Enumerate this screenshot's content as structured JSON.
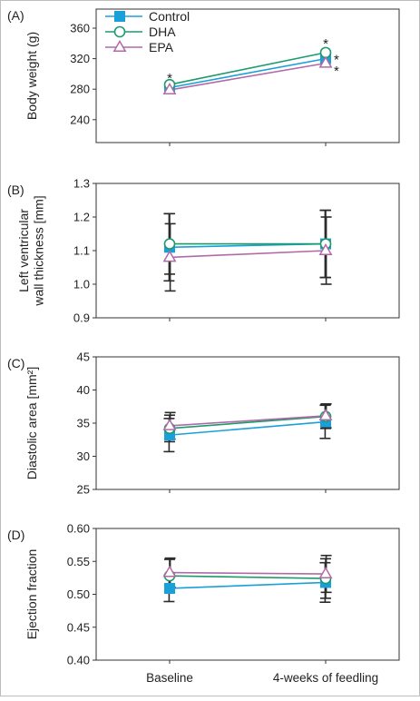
{
  "colors": {
    "Control": "#1aa0d8",
    "DHA": "#1d9a6c",
    "EPA": "#b06aa8",
    "axis": "#333333",
    "errorbar": "#2a2a2a"
  },
  "legend": {
    "placement": "top-left",
    "entries": [
      "Control",
      "DHA",
      "EPA"
    ]
  },
  "x_categories": [
    "Baseline",
    "4-weeks of feedling"
  ],
  "chart_data": [
    {
      "type": "line",
      "panel_label": "(A)",
      "ylabel": "Body weight (g)",
      "ylim": [
        210,
        385
      ],
      "yticks": [
        240,
        280,
        320,
        360
      ],
      "ytick_labels": [
        "240",
        "280",
        "320",
        "360"
      ],
      "categories": [
        "Baseline",
        "4-weeks of feedling"
      ],
      "series": [
        {
          "name": "Control",
          "values": [
            282,
            320
          ],
          "err": [
            0,
            0
          ],
          "marker": "square"
        },
        {
          "name": "DHA",
          "values": [
            286,
            328
          ],
          "err": [
            0,
            0
          ],
          "marker": "circle"
        },
        {
          "name": "EPA",
          "values": [
            279,
            314
          ],
          "err": [
            0,
            0
          ],
          "marker": "triangle"
        }
      ],
      "annotations": [
        {
          "text": "*",
          "x_index": 0,
          "y": 296
        },
        {
          "text": "*",
          "x_index": 1,
          "y": 341
        },
        {
          "text": "*",
          "x_index": 1,
          "y": 320,
          "side": "right"
        },
        {
          "text": "*",
          "x_index": 1,
          "y": 305,
          "side": "right"
        }
      ]
    },
    {
      "type": "line",
      "panel_label": "(B)",
      "ylabel": "Left ventricular\nwall thickness [mm]",
      "ylim": [
        0.9,
        1.3
      ],
      "yticks": [
        0.9,
        1.0,
        1.1,
        1.2,
        1.3
      ],
      "ytick_labels": [
        "0.9",
        "1.0",
        "1.1",
        "1.2",
        "1.3"
      ],
      "categories": [
        "Baseline",
        "4-weeks of feedling"
      ],
      "series": [
        {
          "name": "Control",
          "values": [
            1.11,
            1.12
          ],
          "err": [
            0.1,
            0.1
          ],
          "marker": "square"
        },
        {
          "name": "DHA",
          "values": [
            1.12,
            1.12
          ],
          "err": [
            0.09,
            0.1
          ],
          "marker": "circle"
        },
        {
          "name": "EPA",
          "values": [
            1.08,
            1.1
          ],
          "err": [
            0.1,
            0.1
          ],
          "marker": "triangle"
        }
      ],
      "annotations": []
    },
    {
      "type": "line",
      "panel_label": "(C)",
      "ylabel": "Diastolic area [mm²]",
      "ylim": [
        25,
        45
      ],
      "yticks": [
        25,
        30,
        35,
        40,
        45
      ],
      "ytick_labels": [
        "25",
        "30",
        "35",
        "40",
        "45"
      ],
      "categories": [
        "Baseline",
        "4-weeks of feedling"
      ],
      "series": [
        {
          "name": "Control",
          "values": [
            33.2,
            35.2
          ],
          "err": [
            2.5,
            2.5
          ],
          "marker": "square"
        },
        {
          "name": "DHA",
          "values": [
            34.2,
            36.0
          ],
          "err": [
            2.0,
            1.8
          ],
          "marker": "circle"
        },
        {
          "name": "EPA",
          "values": [
            34.6,
            36.1
          ],
          "err": [
            2.0,
            1.8
          ],
          "marker": "triangle"
        }
      ],
      "annotations": []
    },
    {
      "type": "line",
      "panel_label": "(D)",
      "ylabel": "Ejection fraction",
      "ylim": [
        0.4,
        0.6
      ],
      "yticks": [
        0.4,
        0.45,
        0.5,
        0.55,
        0.6
      ],
      "ytick_labels": [
        "0.40",
        "0.45",
        "0.50",
        "0.55",
        "0.60"
      ],
      "categories": [
        "Baseline",
        "4-weeks of feedling"
      ],
      "series": [
        {
          "name": "Control",
          "values": [
            0.509,
            0.518
          ],
          "err": [
            0.02,
            0.03
          ],
          "marker": "square"
        },
        {
          "name": "DHA",
          "values": [
            0.528,
            0.524
          ],
          "err": [
            0.025,
            0.03
          ],
          "marker": "circle"
        },
        {
          "name": "EPA",
          "values": [
            0.533,
            0.531
          ],
          "err": [
            0.022,
            0.028
          ],
          "marker": "triangle"
        }
      ],
      "annotations": []
    }
  ]
}
